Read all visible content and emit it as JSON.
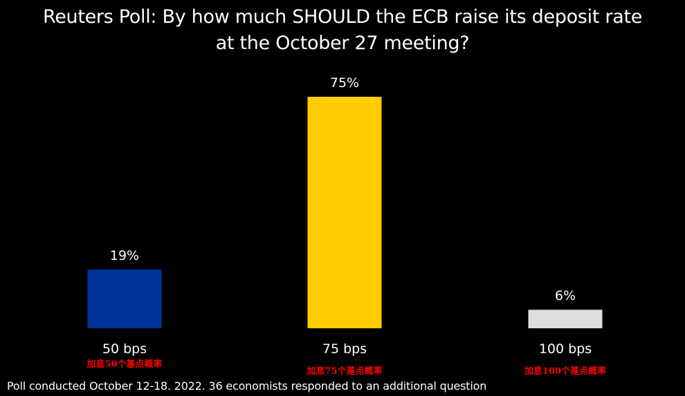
{
  "chart_data": {
    "type": "bar",
    "title": "Reuters Poll: By how much SHOULD the ECB raise its deposit rate at the October 27 meeting?",
    "title_lines": [
      "Reuters Poll: By how much SHOULD the ECB raise its deposit rate",
      "at the October 27 meeting?"
    ],
    "categories": [
      "50 bps",
      "75 bps",
      "100 bps"
    ],
    "values": [
      19,
      75,
      6
    ],
    "value_labels": [
      "19%",
      "75%",
      "6%"
    ],
    "annotations": [
      "加息50个基点概率",
      "加息75个基点概率",
      "加息100个基点概率"
    ],
    "bar_colors": [
      "#003399",
      "#ffcc00",
      "#dddddd"
    ],
    "ylim": [
      0,
      75
    ],
    "grid": false,
    "footnote": "Poll conducted October 12-18. 2022. 36 economists responded to an additional question"
  },
  "colors": {
    "background": "#000000",
    "text": "#ffffff",
    "annotation": "#ff0000"
  }
}
